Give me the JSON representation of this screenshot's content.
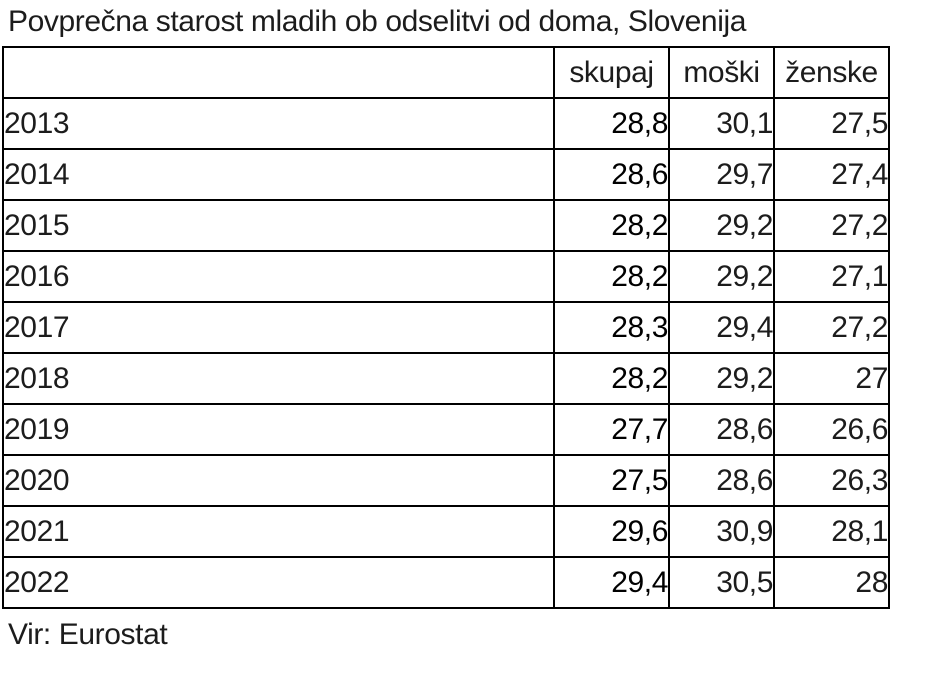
{
  "title": "Povprečna starost mladih ob odselitvi od doma, Slovenija",
  "source": "Vir: Eurostat",
  "colors": {
    "border": "#000000",
    "text": "#1c1c1c",
    "background": "#ffffff"
  },
  "table": {
    "headers": [
      "",
      "skupaj",
      "moški",
      "ženske"
    ],
    "rows": [
      {
        "year": "2013",
        "skupaj": "28,8",
        "moski": "30,1",
        "zenske": "27,5"
      },
      {
        "year": "2014",
        "skupaj": "28,6",
        "moski": "29,7",
        "zenske": "27,4"
      },
      {
        "year": "2015",
        "skupaj": "28,2",
        "moski": "29,2",
        "zenske": "27,2"
      },
      {
        "year": "2016",
        "skupaj": "28,2",
        "moski": "29,2",
        "zenske": "27,1"
      },
      {
        "year": "2017",
        "skupaj": "28,3",
        "moski": "29,4",
        "zenske": "27,2"
      },
      {
        "year": "2018",
        "skupaj": "28,2",
        "moski": "29,2",
        "zenske": "27"
      },
      {
        "year": "2019",
        "skupaj": "27,7",
        "moski": "28,6",
        "zenske": "26,6"
      },
      {
        "year": "2020",
        "skupaj": "27,5",
        "moski": "28,6",
        "zenske": "26,3"
      },
      {
        "year": "2021",
        "skupaj": "29,6",
        "moski": "30,9",
        "zenske": "28,1"
      },
      {
        "year": "2022",
        "skupaj": "29,4",
        "moski": "30,5",
        "zenske": "28"
      }
    ]
  },
  "chart_data": {
    "type": "table",
    "title": "Povprečna starost mladih ob odselitvi od doma, Slovenija",
    "categories": [
      2013,
      2014,
      2015,
      2016,
      2017,
      2018,
      2019,
      2020,
      2021,
      2022
    ],
    "series": [
      {
        "name": "skupaj",
        "values": [
          28.8,
          28.6,
          28.2,
          28.2,
          28.3,
          28.2,
          27.7,
          27.5,
          29.6,
          29.4
        ]
      },
      {
        "name": "moški",
        "values": [
          30.1,
          29.7,
          29.2,
          29.2,
          29.4,
          29.2,
          28.6,
          28.6,
          30.9,
          30.5
        ]
      },
      {
        "name": "ženske",
        "values": [
          27.5,
          27.4,
          27.2,
          27.1,
          27.2,
          27.0,
          26.6,
          26.3,
          28.1,
          28.0
        ]
      }
    ],
    "decimal_separator": ",",
    "source": "Vir: Eurostat",
    "layout": "years as rows, series as columns; 'skupaj' column bold; grid borders on"
  }
}
